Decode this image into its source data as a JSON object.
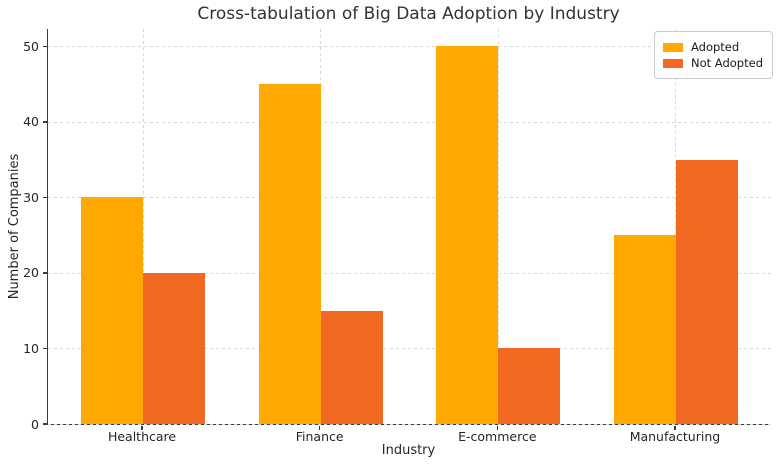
{
  "chart_data": {
    "type": "bar",
    "title": "Cross-tabulation of Big Data Adoption by Industry",
    "xlabel": "Industry",
    "ylabel": "Number of Companies",
    "categories": [
      "Healthcare",
      "Finance",
      "E-commerce",
      "Manufacturing"
    ],
    "series": [
      {
        "name": "Adopted",
        "color": "#FFA801",
        "values": [
          30,
          45,
          50,
          25
        ]
      },
      {
        "name": "Not Adopted",
        "color": "#F26A21",
        "values": [
          20,
          15,
          10,
          35
        ]
      }
    ],
    "ylim": [
      0,
      52.3
    ],
    "yticks": [
      0,
      10,
      20,
      30,
      40,
      50
    ],
    "grid": "dashed",
    "grid_color": "#d7d7d7",
    "legend_position": "upper right",
    "bar_width": 0.35,
    "axis_color": "#3b3b3b"
  }
}
